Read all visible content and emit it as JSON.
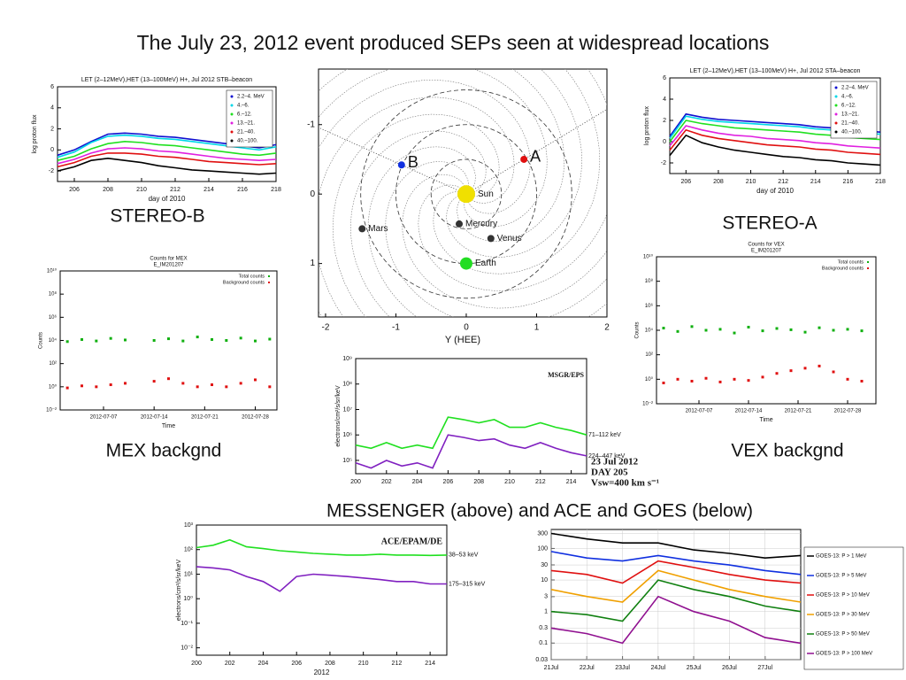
{
  "slide": {
    "title": "The July 23, 2012 event produced SEPs seen at widespread locations",
    "captions": [
      "STEREO-B",
      "STEREO-A",
      "MEX backgnd",
      "VEX backgnd",
      "MESSENGER (above) and ACE and GOES (below)"
    ]
  },
  "chart_data": [
    {
      "type": "line",
      "title": "LET (2–12MeV),HET (13–100MeV) H+, Jul 2012 STB–beacon",
      "xlabel": "day of 2010",
      "ylabel": "log proton flux",
      "xlim": [
        205,
        218
      ],
      "ylim": [
        -3,
        6
      ],
      "xticks": [
        206,
        208,
        210,
        212,
        214,
        216,
        218
      ],
      "yticks": [
        -2,
        0,
        2,
        4,
        6
      ],
      "legend": "upper right",
      "x": [
        205,
        206,
        207,
        208,
        209,
        210,
        211,
        212,
        213,
        214,
        215,
        216,
        217,
        218
      ],
      "series": [
        {
          "name": "2.2–4. MeV",
          "color": "#1010d0",
          "values": [
            -0.5,
            0,
            0.8,
            1.5,
            1.6,
            1.5,
            1.3,
            1.2,
            1.0,
            0.8,
            0.6,
            0.4,
            0.2,
            0.5
          ]
        },
        {
          "name": "4.–6.",
          "color": "#00d8e8",
          "values": [
            -0.7,
            -0.2,
            0.7,
            1.3,
            1.4,
            1.3,
            1.1,
            1.0,
            0.8,
            0.6,
            0.4,
            0.2,
            0,
            0.3
          ]
        },
        {
          "name": "6.–12.",
          "color": "#20e020",
          "values": [
            -1,
            -0.6,
            0.1,
            0.6,
            0.8,
            0.7,
            0.5,
            0.4,
            0.2,
            0,
            -0.2,
            -0.4,
            -0.5,
            -0.3
          ]
        },
        {
          "name": "13.–21.",
          "color": "#e020e0",
          "values": [
            -1.3,
            -0.9,
            -0.3,
            0.1,
            0.2,
            0.1,
            -0.1,
            -0.2,
            -0.4,
            -0.6,
            -0.8,
            -0.9,
            -1,
            -0.9
          ]
        },
        {
          "name": "21.–40.",
          "color": "#e01010",
          "values": [
            -1.6,
            -1.2,
            -0.6,
            -0.3,
            -0.3,
            -0.4,
            -0.6,
            -0.7,
            -0.9,
            -1.1,
            -1.2,
            -1.3,
            -1.4,
            -1.3
          ]
        },
        {
          "name": "40.–100.",
          "color": "#000000",
          "values": [
            -2,
            -1.6,
            -1,
            -0.8,
            -1,
            -1.2,
            -1.5,
            -1.7,
            -1.9,
            -2,
            -2.1,
            -2.2,
            -2.3,
            -2.2
          ]
        }
      ]
    },
    {
      "type": "line",
      "title": "LET (2–12MeV),HET (13–100MeV) H+, Jul 2012 STA–beacon",
      "xlabel": "day of 2010",
      "ylabel": "log proton flux",
      "xlim": [
        205,
        218
      ],
      "ylim": [
        -3,
        6
      ],
      "xticks": [
        206,
        208,
        210,
        212,
        214,
        216,
        218
      ],
      "yticks": [
        -2,
        0,
        2,
        4,
        6
      ],
      "legend": "upper right",
      "x": [
        205,
        206,
        207,
        208,
        209,
        210,
        211,
        212,
        213,
        214,
        215,
        216,
        217,
        218
      ],
      "series": [
        {
          "name": "2.2–4. MeV",
          "color": "#1010d0",
          "values": [
            0.5,
            2.6,
            2.3,
            2.1,
            2.0,
            1.9,
            1.8,
            1.7,
            1.6,
            1.4,
            1.3,
            1.1,
            1.0,
            0.9
          ]
        },
        {
          "name": "4.–6.",
          "color": "#00d8e8",
          "values": [
            0.3,
            2.4,
            2.1,
            1.9,
            1.8,
            1.7,
            1.6,
            1.5,
            1.4,
            1.2,
            1.1,
            0.9,
            0.8,
            0.7
          ]
        },
        {
          "name": "6.–12.",
          "color": "#20e020",
          "values": [
            0,
            2.0,
            1.7,
            1.5,
            1.3,
            1.2,
            1.1,
            1.0,
            0.9,
            0.7,
            0.6,
            0.4,
            0.3,
            0.2
          ]
        },
        {
          "name": "13.–21.",
          "color": "#e020e0",
          "values": [
            -0.4,
            1.5,
            1.1,
            0.8,
            0.6,
            0.5,
            0.3,
            0.2,
            0.1,
            -0.1,
            -0.2,
            -0.4,
            -0.5,
            -0.6
          ]
        },
        {
          "name": "21.–40.",
          "color": "#e01010",
          "values": [
            -0.8,
            1.1,
            0.6,
            0.3,
            0.1,
            -0.1,
            -0.3,
            -0.4,
            -0.5,
            -0.7,
            -0.8,
            -1.0,
            -1.1,
            -1.2
          ]
        },
        {
          "name": "40.–100.",
          "color": "#000000",
          "values": [
            -1.3,
            0.6,
            -0.1,
            -0.5,
            -0.8,
            -1.0,
            -1.2,
            -1.4,
            -1.5,
            -1.7,
            -1.8,
            -2.0,
            -2.1,
            -2.2
          ]
        }
      ]
    },
    {
      "type": "orbit",
      "xlabel": "Y (HEE)",
      "xlim": [
        -2.1,
        2.0
      ],
      "ylim": [
        -1.8,
        1.77
      ],
      "xticks": [
        -2,
        -1,
        0,
        1,
        2
      ],
      "yticks": [
        -1,
        0,
        1
      ],
      "bodies": [
        {
          "label": "B",
          "x": -0.92,
          "y": -0.42,
          "color": "#1030e0"
        },
        {
          "label": "A",
          "x": 0.82,
          "y": -0.5,
          "color": "#e01010"
        },
        {
          "label": "Mars",
          "x": -1.48,
          "y": 0.5,
          "color": "#333333"
        },
        {
          "label": "Mercury",
          "x": -0.1,
          "y": 0.43,
          "color": "#333333"
        },
        {
          "label": "Venus",
          "x": 0.35,
          "y": 0.64,
          "color": "#333333"
        },
        {
          "label": "Earth",
          "x": 0,
          "y": 1.0,
          "color": "#22dd22"
        },
        {
          "label": "Sun",
          "x": 0,
          "y": 0,
          "color": "#f0e000"
        }
      ]
    },
    {
      "type": "scatter",
      "title": "Counts for MEX",
      "subtitle": "E_IM201207",
      "xlabel": "Time",
      "ylabel": "Counts",
      "xdate": true,
      "ylog": true,
      "xlim": [
        "2012-07-01",
        "2012-07-31"
      ],
      "ylim": [
        0.01,
        10000000000.0
      ],
      "legend": "upper right",
      "xticks": [
        "2012-07-07",
        "2012-07-14",
        "2012-07-21",
        "2012-07-28"
      ],
      "yticks": [
        {
          "value": 0.01,
          "label": "10⁻²"
        },
        {
          "value": 1,
          "label": "10⁰"
        },
        {
          "value": 100,
          "label": "10²"
        },
        {
          "value": 10000,
          "label": "10⁴"
        },
        {
          "value": 1000000,
          "label": "10⁶"
        },
        {
          "value": 100000000,
          "label": "10⁸"
        },
        {
          "value": 10000000000,
          "label": "10¹⁰"
        }
      ],
      "x": [
        "2012-07-02",
        "2012-07-04",
        "2012-07-06",
        "2012-07-08",
        "2012-07-10",
        "2012-07-12",
        "2012-07-14",
        "2012-07-16",
        "2012-07-18",
        "2012-07-20",
        "2012-07-22",
        "2012-07-24",
        "2012-07-26",
        "2012-07-28",
        "2012-07-30"
      ],
      "series": [
        {
          "name": "Total counts",
          "color": "#10b010",
          "values": [
            8000,
            12000,
            9000,
            15000,
            11000,
            null,
            10000,
            14000,
            9000,
            20000,
            12000,
            10000,
            16000,
            9000,
            13000
          ]
        },
        {
          "name": "Background counts",
          "color": "#e01010",
          "values": [
            0.8,
            1.2,
            1,
            1.5,
            2,
            null,
            3,
            5,
            2,
            1,
            1.5,
            1,
            2,
            4,
            1
          ]
        }
      ]
    },
    {
      "type": "scatter",
      "title": "Counts for VEX",
      "subtitle": "E_IM201207",
      "xlabel": "Time",
      "ylabel": "Counts",
      "xdate": true,
      "ylog": true,
      "xlim": [
        "2012-07-01",
        "2012-08-01"
      ],
      "ylim": [
        0.01,
        10000000000.0
      ],
      "legend": "upper right",
      "xticks": [
        "2012-07-07",
        "2012-07-14",
        "2012-07-21",
        "2012-07-28"
      ],
      "yticks": [
        {
          "value": 0.01,
          "label": "10⁻²"
        },
        {
          "value": 1,
          "label": "10⁰"
        },
        {
          "value": 100,
          "label": "10²"
        },
        {
          "value": 10000,
          "label": "10⁴"
        },
        {
          "value": 1000000,
          "label": "10⁶"
        },
        {
          "value": 100000000,
          "label": "10⁸"
        },
        {
          "value": 10000000000,
          "label": "10¹⁰"
        }
      ],
      "x": [
        "2012-07-02",
        "2012-07-04",
        "2012-07-06",
        "2012-07-08",
        "2012-07-10",
        "2012-07-12",
        "2012-07-14",
        "2012-07-16",
        "2012-07-18",
        "2012-07-20",
        "2012-07-22",
        "2012-07-24",
        "2012-07-26",
        "2012-07-28",
        "2012-07-30"
      ],
      "series": [
        {
          "name": "Total counts",
          "color": "#10b010",
          "values": [
            15000,
            8000,
            20000,
            10000,
            12000,
            6000,
            18000,
            9000,
            14000,
            11000,
            7000,
            16000,
            10000,
            12000,
            9000
          ]
        },
        {
          "name": "Background counts",
          "color": "#e01010",
          "values": [
            0.5,
            1,
            0.7,
            1.2,
            0.6,
            1,
            0.8,
            1.5,
            3,
            5,
            8,
            12,
            4,
            1,
            0.7
          ]
        }
      ]
    },
    {
      "type": "line",
      "ylabel": "electrons/cm²/s/sr/keV",
      "ylog": true,
      "legend": "inline",
      "xlim": [
        200,
        215
      ],
      "ylim": [
        30000,
        1000000000.0
      ],
      "xticks": [
        200,
        202,
        204,
        206,
        208,
        210,
        212,
        214
      ],
      "yticks": [
        {
          "value": 100000,
          "label": "10⁵"
        },
        {
          "value": 1000000,
          "label": "10⁶"
        },
        {
          "value": 10000000,
          "label": "10⁷"
        },
        {
          "value": 100000000,
          "label": "10⁸"
        },
        {
          "value": 1000000000,
          "label": "10⁹"
        }
      ],
      "annotations": [
        "MSGR/EPS",
        "23 Jul 2012",
        "DAY 205",
        "Vsw=400 km s⁻¹"
      ],
      "x": [
        200,
        201,
        202,
        203,
        204,
        205,
        206,
        207,
        208,
        209,
        210,
        211,
        212,
        213,
        214,
        215
      ],
      "series": [
        {
          "name": "71–112 keV",
          "color": "#20e020",
          "values": [
            400000,
            300000,
            500000,
            300000,
            400000,
            300000,
            5000000,
            4000000,
            3000000,
            4000000,
            2000000,
            2000000,
            3000000,
            2000000,
            1500000,
            1000000
          ]
        },
        {
          "name": "224–447 keV",
          "color": "#8020c0",
          "values": [
            80000,
            50000,
            100000,
            60000,
            80000,
            50000,
            1000000,
            800000,
            600000,
            700000,
            400000,
            300000,
            500000,
            300000,
            200000,
            150000
          ]
        }
      ]
    },
    {
      "type": "line",
      "xlabel": "2012",
      "ylabel": "electrons/cm²/s/sr/keV",
      "ylog": true,
      "legend": "inline",
      "xlim": [
        200,
        215
      ],
      "ylim": [
        0.005,
        1000
      ],
      "xticks": [
        200,
        202,
        204,
        206,
        208,
        210,
        212,
        214
      ],
      "yticks": [
        {
          "value": 0.01,
          "label": "10⁻²"
        },
        {
          "value": 0.1,
          "label": "10⁻¹"
        },
        {
          "value": 1,
          "label": "10⁰"
        },
        {
          "value": 10,
          "label": "10¹"
        },
        {
          "value": 100,
          "label": "10²"
        },
        {
          "value": 1000,
          "label": "10³"
        }
      ],
      "annotations": [
        "ACE/EPAM/DE"
      ],
      "x": [
        200,
        201,
        202,
        203,
        204,
        205,
        206,
        207,
        208,
        209,
        210,
        211,
        212,
        213,
        214,
        215
      ],
      "series": [
        {
          "name": "38–53 keV",
          "color": "#20e020",
          "values": [
            120,
            150,
            250,
            130,
            110,
            90,
            80,
            70,
            65,
            60,
            60,
            65,
            60,
            60,
            58,
            60
          ]
        },
        {
          "name": "175–315 keV",
          "color": "#8020c0",
          "values": [
            20,
            18,
            15,
            8,
            5,
            2,
            8,
            10,
            9,
            8,
            7,
            6,
            5,
            5,
            4,
            4
          ]
        }
      ]
    },
    {
      "type": "line",
      "ylog": true,
      "xdate": true,
      "legend": "outside right",
      "xlim": [
        "2012-07-21",
        "2012-07-28"
      ],
      "ylim": [
        0.03,
        400
      ],
      "xticks": [
        {
          "value": "2012-07-21",
          "label": "21Jul"
        },
        {
          "value": "2012-07-22",
          "label": "22Jul"
        },
        {
          "value": "2012-07-23",
          "label": "23Jul"
        },
        {
          "value": "2012-07-24",
          "label": "24Jul"
        },
        {
          "value": "2012-07-25",
          "label": "25Jul"
        },
        {
          "value": "2012-07-26",
          "label": "26Jul"
        },
        {
          "value": "2012-07-27",
          "label": "27Jul"
        }
      ],
      "yticks": [
        0.03,
        0.1,
        0.3,
        1,
        3,
        10,
        30,
        100,
        300
      ],
      "x": [
        "2012-07-21",
        "2012-07-22",
        "2012-07-23",
        "2012-07-24",
        "2012-07-25",
        "2012-07-26",
        "2012-07-27",
        "2012-07-28"
      ],
      "series": [
        {
          "name": "GOES-13: P > 1 MeV",
          "color": "#000000",
          "values": [
            300,
            200,
            150,
            150,
            90,
            70,
            50,
            60
          ]
        },
        {
          "name": "GOES-13: P > 5 MeV",
          "color": "#1030e0",
          "values": [
            80,
            50,
            40,
            60,
            40,
            30,
            20,
            15
          ]
        },
        {
          "name": "GOES-13: P > 10 MeV",
          "color": "#e01010",
          "values": [
            20,
            15,
            8,
            40,
            25,
            15,
            10,
            8
          ]
        },
        {
          "name": "GOES-13: P > 30 MeV",
          "color": "#f0a000",
          "values": [
            5,
            3,
            2,
            20,
            10,
            5,
            3,
            2
          ]
        },
        {
          "name": "GOES-13: P > 50 MeV",
          "color": "#108010",
          "values": [
            1,
            0.8,
            0.5,
            10,
            5,
            3,
            1.5,
            1
          ]
        },
        {
          "name": "GOES-13: P > 100 MeV",
          "color": "#901090",
          "values": [
            0.3,
            0.2,
            0.1,
            3,
            1,
            0.5,
            0.15,
            0.1
          ]
        }
      ]
    }
  ]
}
